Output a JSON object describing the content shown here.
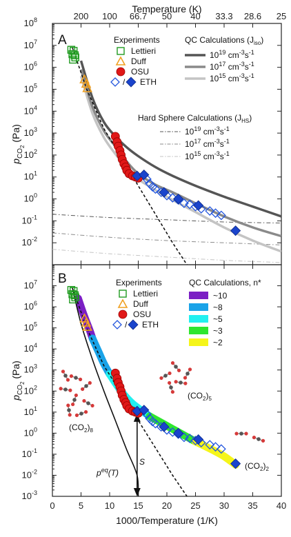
{
  "chart_data": {
    "type": "scatter",
    "x_axis": {
      "label": "1000/Temperature (1/K)",
      "lim": [
        0,
        40
      ],
      "ticks": [
        0,
        5,
        10,
        15,
        20,
        25,
        30,
        35,
        40
      ]
    },
    "top_axis": {
      "label": "Temperature (K)",
      "ticks": [
        {
          "x": 5,
          "label": "200"
        },
        {
          "x": 10,
          "label": "100"
        },
        {
          "x": 15,
          "label": "66.7"
        },
        {
          "x": 20,
          "label": "50"
        },
        {
          "x": 25,
          "label": "40"
        },
        {
          "x": 30,
          "label": "33.3"
        },
        {
          "x": 35,
          "label": "28.6"
        },
        {
          "x": 40,
          "label": "25"
        }
      ]
    },
    "y_axis": {
      "label_main": "p",
      "label_sub": "CO",
      "label_sub2": "2",
      "label_tail": " (Pa)",
      "scale": "log"
    },
    "panels": [
      {
        "panel_label": "A",
        "ylim_log10": [
          -3,
          8
        ],
        "tick_exponents": [
          -2,
          -1,
          0,
          1,
          2,
          3,
          4,
          5,
          6,
          7,
          8
        ],
        "legend": {
          "experiments_title": "Experiments",
          "experiment_labels": [
            "Lettieri",
            "Duff",
            "OSU"
          ],
          "eth_slash": "/",
          "eth_label": "ETH",
          "qc_title": "QC Calculations (J",
          "qc_title_sub": "iso",
          "qc_title_end": ")",
          "qc_entries": [
            {
              "base": "10",
              "exp": "19",
              "unit": " cm",
              "uexp": "-3",
              "unit2": "s",
              "uexp2": "-1",
              "color": "#555555",
              "width": 3.5
            },
            {
              "base": "10",
              "exp": "17",
              "unit": " cm",
              "uexp": "-3",
              "unit2": "s",
              "uexp2": "-1",
              "color": "#8a8a8a",
              "width": 3.5
            },
            {
              "base": "10",
              "exp": "15",
              "unit": " cm",
              "uexp": "-3",
              "unit2": "s",
              "uexp2": "-1",
              "color": "#c4c4c4",
              "width": 3.5
            }
          ],
          "hs_title": "Hard Sphere Calculations (J",
          "hs_title_sub": "HS",
          "hs_title_end": ")",
          "hs_entries": [
            {
              "base": "10",
              "exp": "19",
              "unit": " cm",
              "uexp": "-3",
              "unit2": "s",
              "uexp2": "-1",
              "color": "#555555"
            },
            {
              "base": "10",
              "exp": "17",
              "unit": " cm",
              "uexp": "-3",
              "unit2": "s",
              "uexp2": "-1",
              "color": "#8a8a8a"
            },
            {
              "base": "10",
              "exp": "15",
              "unit": " cm",
              "uexp": "-3",
              "unit2": "s",
              "uexp2": "-1",
              "color": "#c4c4c4"
            }
          ]
        }
      },
      {
        "panel_label": "B",
        "ylim_log10": [
          -3,
          8
        ],
        "tick_exponents": [
          -3,
          -2,
          -1,
          0,
          1,
          2,
          3,
          4,
          5,
          6,
          7
        ],
        "legend": {
          "experiments_title": "Experiments",
          "experiment_labels": [
            "Lettieri",
            "Duff",
            "OSU"
          ],
          "eth_slash": "/",
          "eth_label": "ETH",
          "qc_title": "QC Calculations, n*",
          "nstar_entries": [
            {
              "label": "~10",
              "color": "#7b1fc4"
            },
            {
              "label": "~8",
              "color": "#1aa3e8"
            },
            {
              "label": "~5",
              "color": "#22f0f0"
            },
            {
              "label": "~3",
              "color": "#2ee62e"
            },
            {
              "label": "~2",
              "color": "#f5f51a"
            }
          ]
        },
        "annotations": {
          "cluster_8": "(CO",
          "cluster_8_sub": "2",
          "cluster_8_end": ")",
          "cluster_8_n": "8",
          "cluster_5_n": "5",
          "cluster_2_n": "2",
          "s_label": "S",
          "peq_label": "p",
          "peq_sup": "eq",
          "peq_end": "(T)"
        }
      }
    ],
    "series": {
      "lettieri": [
        [
          3.3,
          6.8
        ],
        [
          3.5,
          6.6
        ],
        [
          3.7,
          6.75
        ],
        [
          3.9,
          6.55
        ],
        [
          4.0,
          6.45
        ],
        [
          3.6,
          6.35
        ]
      ],
      "duff": [
        [
          5.6,
          5.45
        ],
        [
          5.9,
          5.25
        ],
        [
          6.1,
          5.05
        ]
      ],
      "osu": [
        [
          11.0,
          2.85
        ],
        [
          11.3,
          2.6
        ],
        [
          11.5,
          2.4
        ],
        [
          11.8,
          2.2
        ],
        [
          12.0,
          2.0
        ],
        [
          12.2,
          1.8
        ],
        [
          12.5,
          1.6
        ],
        [
          12.8,
          1.45
        ],
        [
          13.0,
          1.3
        ],
        [
          13.4,
          1.15
        ],
        [
          14.0,
          1.05
        ],
        [
          14.5,
          1.0
        ],
        [
          15.0,
          0.95
        ]
      ],
      "eth_open": [
        [
          16.5,
          0.9
        ],
        [
          17.0,
          0.7
        ],
        [
          17.5,
          0.55
        ],
        [
          18.0,
          0.45
        ],
        [
          19.0,
          0.3
        ],
        [
          20.0,
          0.15
        ],
        [
          21.0,
          0.05
        ],
        [
          22.0,
          -0.05
        ],
        [
          23.0,
          -0.2
        ],
        [
          24.0,
          -0.25
        ],
        [
          25.0,
          -0.35
        ],
        [
          26.0,
          -0.45
        ],
        [
          27.5,
          -0.55
        ],
        [
          28.5,
          -0.65
        ],
        [
          29.5,
          -0.75
        ]
      ],
      "eth_filled": [
        [
          14.8,
          1.05
        ],
        [
          16.0,
          1.1
        ],
        [
          19.5,
          0.3
        ],
        [
          22.0,
          0.0
        ],
        [
          25.5,
          -0.3
        ],
        [
          32.0,
          -1.45
        ]
      ],
      "qc_1e19": [
        [
          5.0,
          6.3
        ],
        [
          7.0,
          4.6
        ],
        [
          9.0,
          3.5
        ],
        [
          11.0,
          2.85
        ],
        [
          13.0,
          2.35
        ],
        [
          15.0,
          1.95
        ],
        [
          18.0,
          1.45
        ],
        [
          21.0,
          1.05
        ],
        [
          25.0,
          0.6
        ],
        [
          30.0,
          0.1
        ],
        [
          35.0,
          -0.35
        ],
        [
          40.0,
          -0.8
        ]
      ],
      "qc_1e17": [
        [
          5.0,
          5.9
        ],
        [
          7.0,
          4.2
        ],
        [
          9.0,
          3.1
        ],
        [
          11.0,
          2.4
        ],
        [
          13.0,
          1.7
        ],
        [
          15.0,
          1.15
        ],
        [
          18.0,
          0.65
        ],
        [
          21.0,
          0.3
        ],
        [
          25.0,
          -0.2
        ],
        [
          30.0,
          -0.8
        ],
        [
          35.0,
          -1.3
        ],
        [
          40.0,
          -1.7
        ]
      ],
      "qc_1e15": [
        [
          5.0,
          5.6
        ],
        [
          7.0,
          3.9
        ],
        [
          9.0,
          2.8
        ],
        [
          11.0,
          2.05
        ],
        [
          13.0,
          1.4
        ],
        [
          15.0,
          0.9
        ],
        [
          18.0,
          0.4
        ],
        [
          21.0,
          -0.05
        ],
        [
          25.0,
          -0.6
        ],
        [
          30.0,
          -1.3
        ],
        [
          35.0,
          -1.9
        ],
        [
          40.0,
          -2.4
        ]
      ],
      "hs_1e19": [
        [
          0.0,
          -0.7
        ],
        [
          10.0,
          -0.85
        ],
        [
          20.0,
          -0.95
        ],
        [
          30.0,
          -1.05
        ],
        [
          40.0,
          -1.1
        ]
      ],
      "hs_1e17": [
        [
          0.0,
          -1.55
        ],
        [
          10.0,
          -1.75
        ],
        [
          20.0,
          -1.9
        ],
        [
          30.0,
          -2.0
        ],
        [
          40.0,
          -2.1
        ]
      ],
      "hs_1e15": [
        [
          0.0,
          -2.3
        ],
        [
          10.0,
          -2.5
        ],
        [
          20.0,
          -2.65
        ],
        [
          30.0,
          -2.8
        ],
        [
          40.0,
          -2.9
        ]
      ],
      "eq_dashed": [
        [
          3.5,
          6.9
        ],
        [
          6.0,
          5.0
        ],
        [
          9.0,
          3.2
        ],
        [
          12.0,
          1.9
        ],
        [
          15.0,
          0.6
        ],
        [
          18.0,
          -0.7
        ],
        [
          21.0,
          -2.0
        ],
        [
          23.5,
          -3.0
        ]
      ],
      "peq_solid_B": [
        [
          3.5,
          6.9
        ],
        [
          5.0,
          5.2
        ],
        [
          7.0,
          3.5
        ],
        [
          9.0,
          2.0
        ],
        [
          11.0,
          0.6
        ],
        [
          13.0,
          -0.8
        ],
        [
          14.8,
          -2.0
        ],
        [
          15.0,
          -3.0
        ]
      ],
      "nstar_band_B": [
        {
          "color": "#7b1fc4",
          "pts": [
            [
              4.5,
              6.4
            ],
            [
              5.5,
              5.6
            ],
            [
              6.5,
              4.9
            ],
            [
              7.0,
              4.5
            ]
          ]
        },
        {
          "color": "#1aa3e8",
          "pts": [
            [
              7.0,
              4.5
            ],
            [
              8.0,
              3.9
            ],
            [
              9.0,
              3.3
            ],
            [
              10.0,
              2.8
            ]
          ]
        },
        {
          "color": "#22f0f0",
          "pts": [
            [
              10.0,
              2.8
            ],
            [
              12.0,
              2.0
            ],
            [
              14.0,
              1.4
            ],
            [
              17.0,
              0.8
            ]
          ]
        },
        {
          "color": "#2ee62e",
          "pts": [
            [
              17.0,
              0.8
            ],
            [
              20.0,
              0.35
            ],
            [
              23.0,
              -0.1
            ],
            [
              25.0,
              -0.4
            ]
          ]
        },
        {
          "color": "#f5f51a",
          "pts": [
            [
              25.0,
              -0.4
            ],
            [
              28.0,
              -0.8
            ],
            [
              30.0,
              -1.1
            ],
            [
              32.0,
              -1.5
            ]
          ]
        }
      ],
      "s_arrow_B": {
        "x": 14.8,
        "y_low": -3.0,
        "y_high": 1.0
      }
    }
  }
}
